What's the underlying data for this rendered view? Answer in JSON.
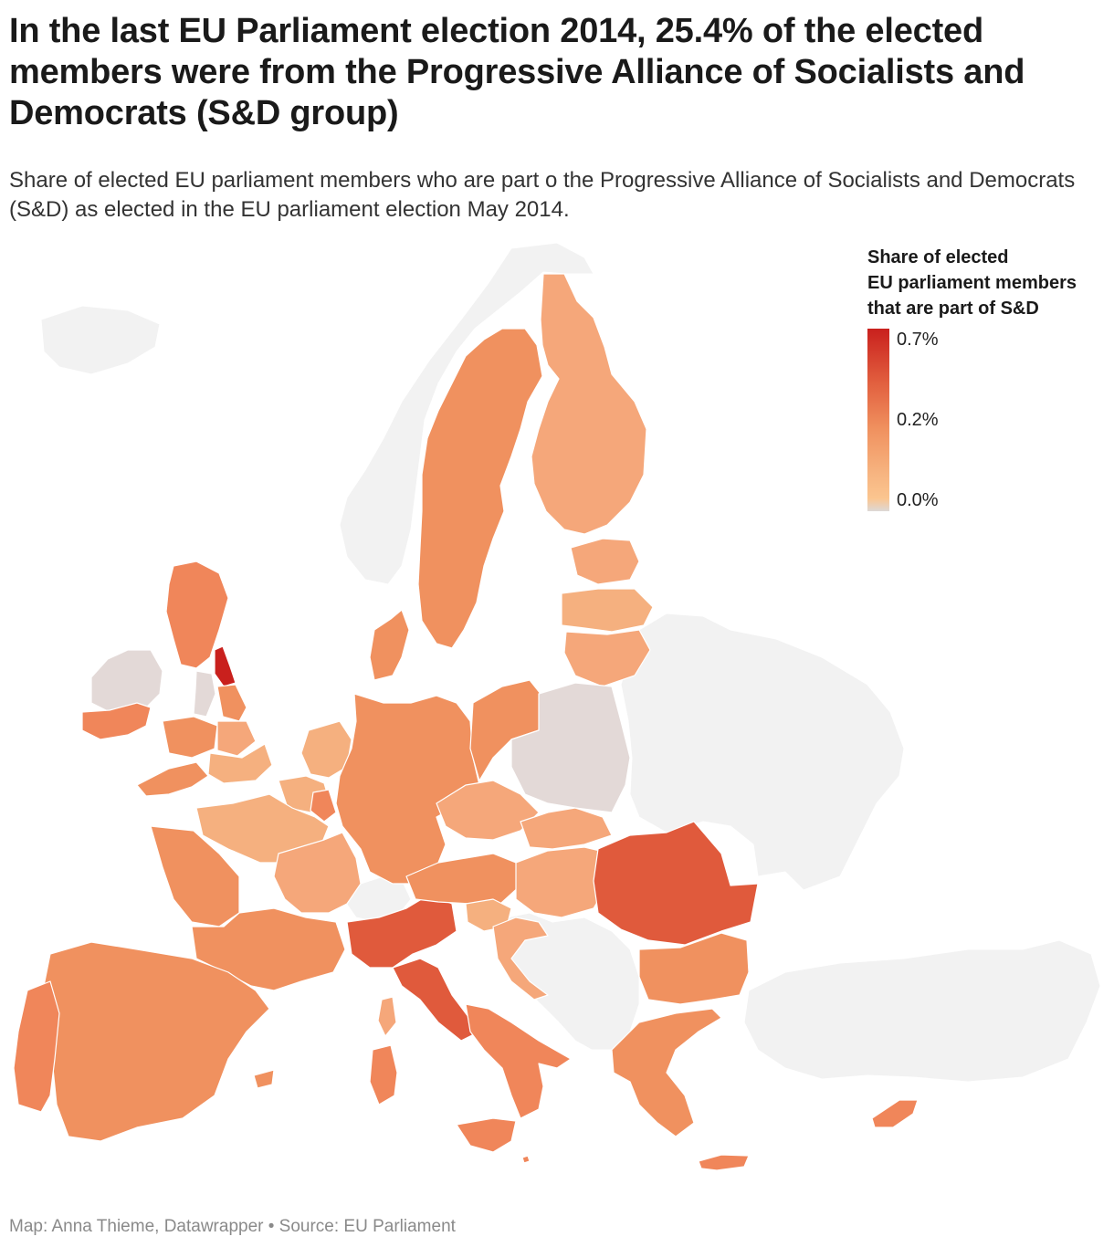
{
  "title": "In the last EU Parliament election 2014, 25.4% of the elected members were from the Progressive Alliance of Socialists and Democrats (S&D group)",
  "subtitle": "Share of elected EU parliament members who are part o the Progressive Alliance of Socialists and Democrats (S&D) as elected in the EU parliament election May 2014.",
  "legend": {
    "title_line1": "Share of elected",
    "title_line2": "EU parliament members",
    "title_line3": "that are part of S&D",
    "tick_high": "0.7%",
    "tick_mid": "0.2%",
    "tick_low": "0.0%"
  },
  "footer": "Map: Anna Thieme, Datawrapper • Source: EU Parliament",
  "colors": {
    "highest": "#c9201d",
    "high": "#e05a3c",
    "mid": "#f0915f",
    "low": "#f5b07f",
    "zero": "#e3d9d7",
    "background_land": "#f2f2f2"
  }
}
